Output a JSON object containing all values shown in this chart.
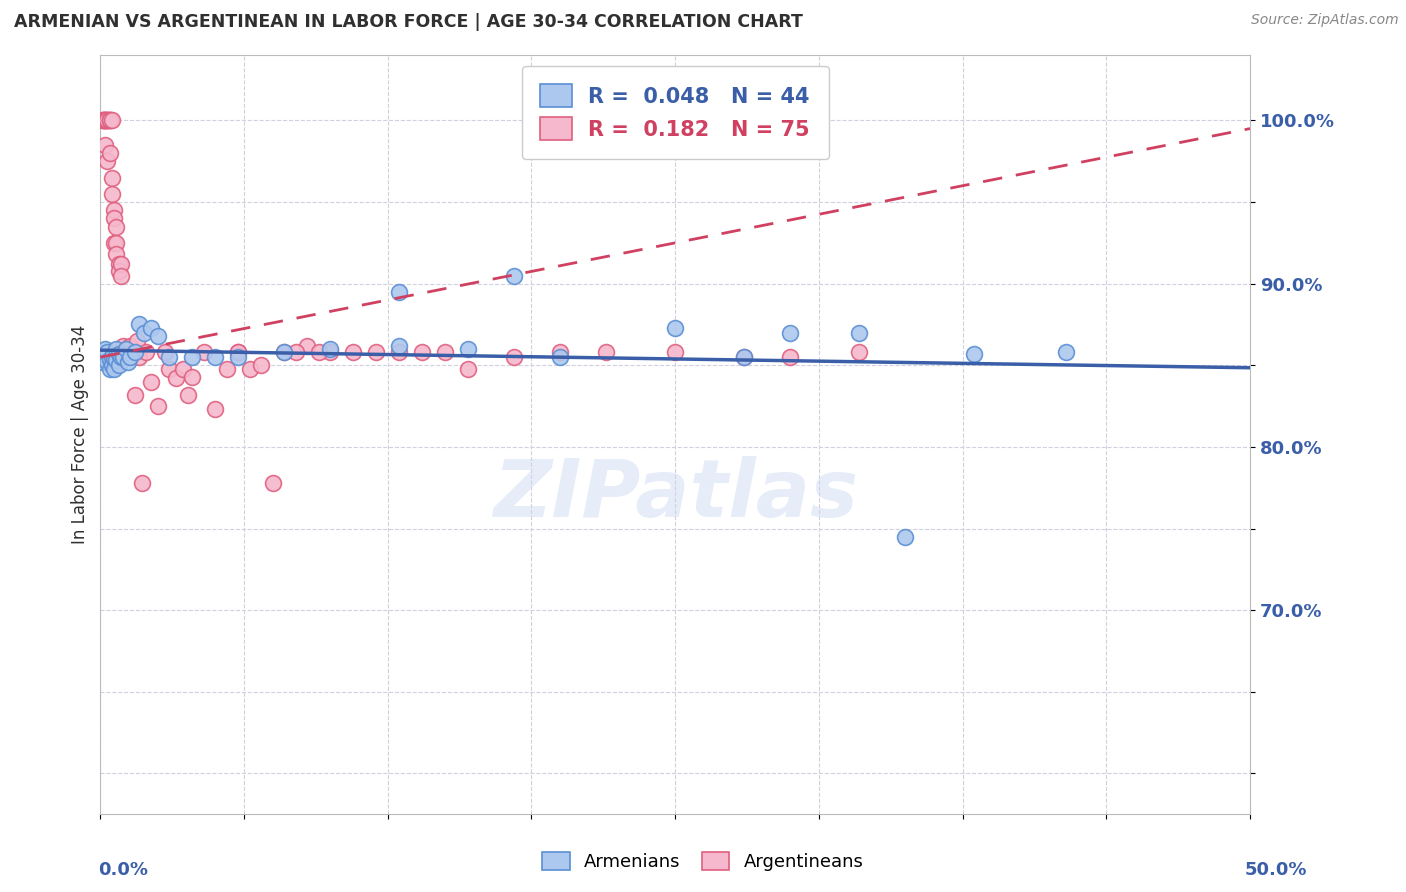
{
  "title": "ARMENIAN VS ARGENTINEAN IN LABOR FORCE | AGE 30-34 CORRELATION CHART",
  "source": "Source: ZipAtlas.com",
  "ylabel": "In Labor Force | Age 30-34",
  "xmin": 0.0,
  "xmax": 0.5,
  "ymin": 0.575,
  "ymax": 1.04,
  "legend_r_armenian": "0.048",
  "legend_n_armenian": "44",
  "legend_r_argentinean": "0.182",
  "legend_n_argentinean": "75",
  "watermark": "ZIPatlas",
  "armenian_color": "#adc8ee",
  "armenian_edge": "#5a8fd4",
  "argentinean_color": "#f5b8cc",
  "argentinean_edge": "#e06080",
  "armenian_line_color": "#3a5fa8",
  "argentinean_line_color": "#d04060",
  "grid_color": "#d0d0e0",
  "title_color": "#303030",
  "tick_label_color": "#3a5fa8",
  "background_color": "#ffffff",
  "armenian_scatter_x": [
    0.001,
    0.001,
    0.002,
    0.002,
    0.003,
    0.003,
    0.004,
    0.004,
    0.005,
    0.005,
    0.006,
    0.006,
    0.007,
    0.007,
    0.008,
    0.008,
    0.009,
    0.01,
    0.011,
    0.012,
    0.013,
    0.015,
    0.017,
    0.019,
    0.022,
    0.025,
    0.03,
    0.04,
    0.05,
    0.06,
    0.08,
    0.1,
    0.13,
    0.16,
    0.2,
    0.25,
    0.3,
    0.33,
    0.38,
    0.42,
    0.13,
    0.18,
    0.28,
    0.35
  ],
  "armenian_scatter_y": [
    0.857,
    0.852,
    0.856,
    0.86,
    0.858,
    0.852,
    0.854,
    0.848,
    0.855,
    0.85,
    0.854,
    0.848,
    0.86,
    0.853,
    0.857,
    0.85,
    0.855,
    0.855,
    0.86,
    0.852,
    0.855,
    0.858,
    0.875,
    0.87,
    0.873,
    0.868,
    0.855,
    0.855,
    0.855,
    0.855,
    0.858,
    0.86,
    0.862,
    0.86,
    0.855,
    0.873,
    0.87,
    0.87,
    0.857,
    0.858,
    0.895,
    0.905,
    0.855,
    0.745
  ],
  "argentinean_scatter_x": [
    0.001,
    0.001,
    0.001,
    0.002,
    0.002,
    0.002,
    0.002,
    0.003,
    0.003,
    0.003,
    0.003,
    0.004,
    0.004,
    0.004,
    0.004,
    0.005,
    0.005,
    0.005,
    0.006,
    0.006,
    0.006,
    0.007,
    0.007,
    0.007,
    0.008,
    0.008,
    0.009,
    0.009,
    0.01,
    0.01,
    0.01,
    0.011,
    0.011,
    0.012,
    0.013,
    0.014,
    0.015,
    0.016,
    0.017,
    0.018,
    0.02,
    0.022,
    0.025,
    0.028,
    0.03,
    0.033,
    0.036,
    0.04,
    0.045,
    0.05,
    0.055,
    0.06,
    0.065,
    0.07,
    0.08,
    0.09,
    0.1,
    0.11,
    0.12,
    0.13,
    0.14,
    0.15,
    0.16,
    0.18,
    0.2,
    0.22,
    0.25,
    0.28,
    0.3,
    0.33,
    0.038,
    0.06,
    0.075,
    0.085,
    0.095
  ],
  "argentinean_scatter_y": [
    1.0,
    1.0,
    1.0,
    1.0,
    1.0,
    1.0,
    0.985,
    1.0,
    1.0,
    1.0,
    0.975,
    1.0,
    1.0,
    1.0,
    0.98,
    1.0,
    0.965,
    0.955,
    0.945,
    0.94,
    0.925,
    0.935,
    0.925,
    0.918,
    0.912,
    0.908,
    0.912,
    0.905,
    0.858,
    0.862,
    0.855,
    0.86,
    0.855,
    0.858,
    0.862,
    0.858,
    0.832,
    0.865,
    0.855,
    0.778,
    0.858,
    0.84,
    0.825,
    0.858,
    0.848,
    0.842,
    0.848,
    0.843,
    0.858,
    0.823,
    0.848,
    0.858,
    0.848,
    0.85,
    0.858,
    0.862,
    0.858,
    0.858,
    0.858,
    0.858,
    0.858,
    0.858,
    0.848,
    0.855,
    0.858,
    0.858,
    0.858,
    0.855,
    0.855,
    0.858,
    0.832,
    0.858,
    0.778,
    0.858,
    0.858
  ]
}
